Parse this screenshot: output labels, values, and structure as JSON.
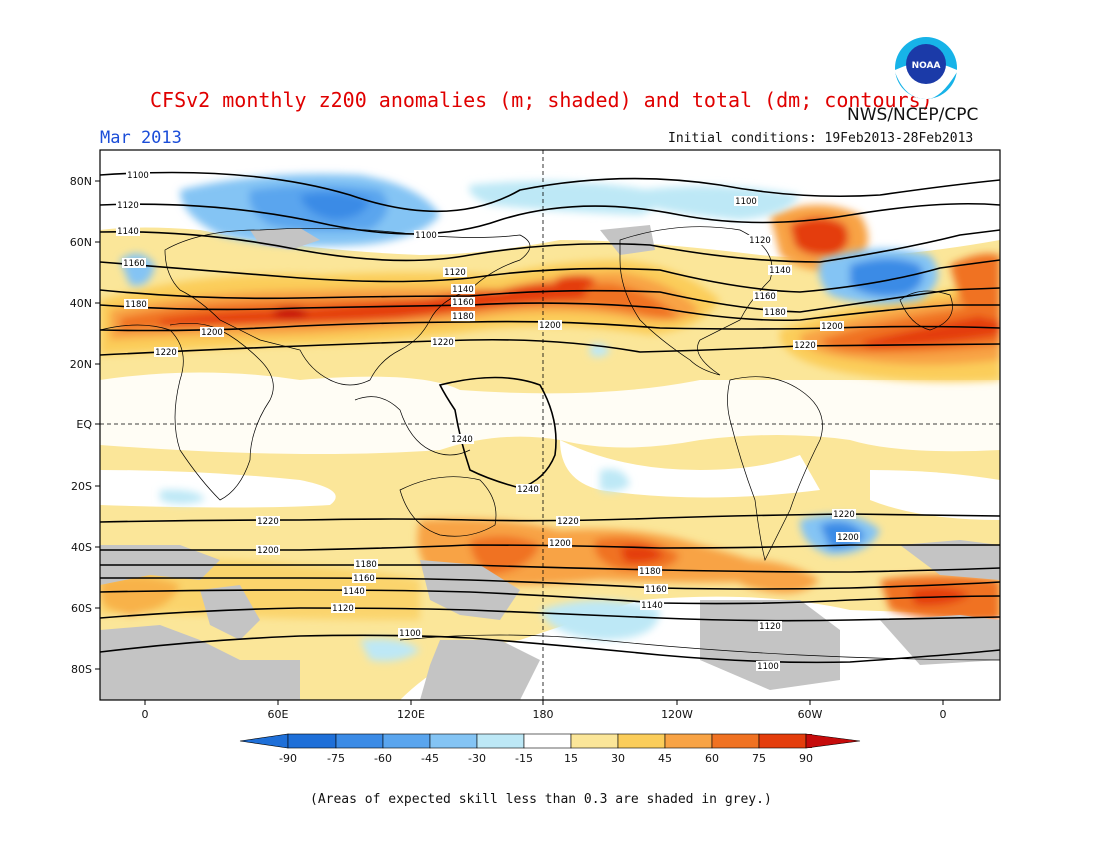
{
  "title": "CFSv2 monthly z200 anomalies (m; shaded) and total (dm; contours)",
  "month": "Mar 2013",
  "agency": "NWS/NCEP/CPC",
  "initial_conditions": "Initial conditions: 19Feb2013-28Feb2013",
  "footnote": "(Areas of expected skill less than 0.3 are shaded in grey.)",
  "logo": {
    "icon": "noaa-logo",
    "text": "NOAA"
  },
  "colors": {
    "m90": "#1e6fd8",
    "m75": "#3b8be6",
    "m60": "#5aa5ee",
    "m45": "#84c4f4",
    "m30": "#bde8f6",
    "neutral": "#ffffff",
    "p15": "#fbe699",
    "p30": "#fbcd5a",
    "p45": "#f8a345",
    "p60": "#f07222",
    "p75": "#e43d0c",
    "p90": "#c60b0b",
    "grey": "#c4c4c4",
    "contour": "#000000"
  },
  "axes": {
    "lat_labels": [
      "80N",
      "60N",
      "40N",
      "20N",
      "EQ",
      "20S",
      "40S",
      "60S",
      "80S"
    ],
    "lon_labels": [
      "0",
      "60E",
      "120E",
      "180",
      "120W",
      "60W",
      "0"
    ]
  },
  "colorbar": {
    "labels": [
      "-90",
      "-75",
      "-60",
      "-45",
      "-30",
      "-15",
      "15",
      "30",
      "45",
      "60",
      "75",
      "90"
    ]
  },
  "contour_labels": [
    "1100",
    "1120",
    "1140",
    "1160",
    "1180",
    "1200",
    "1220",
    "1240"
  ]
}
